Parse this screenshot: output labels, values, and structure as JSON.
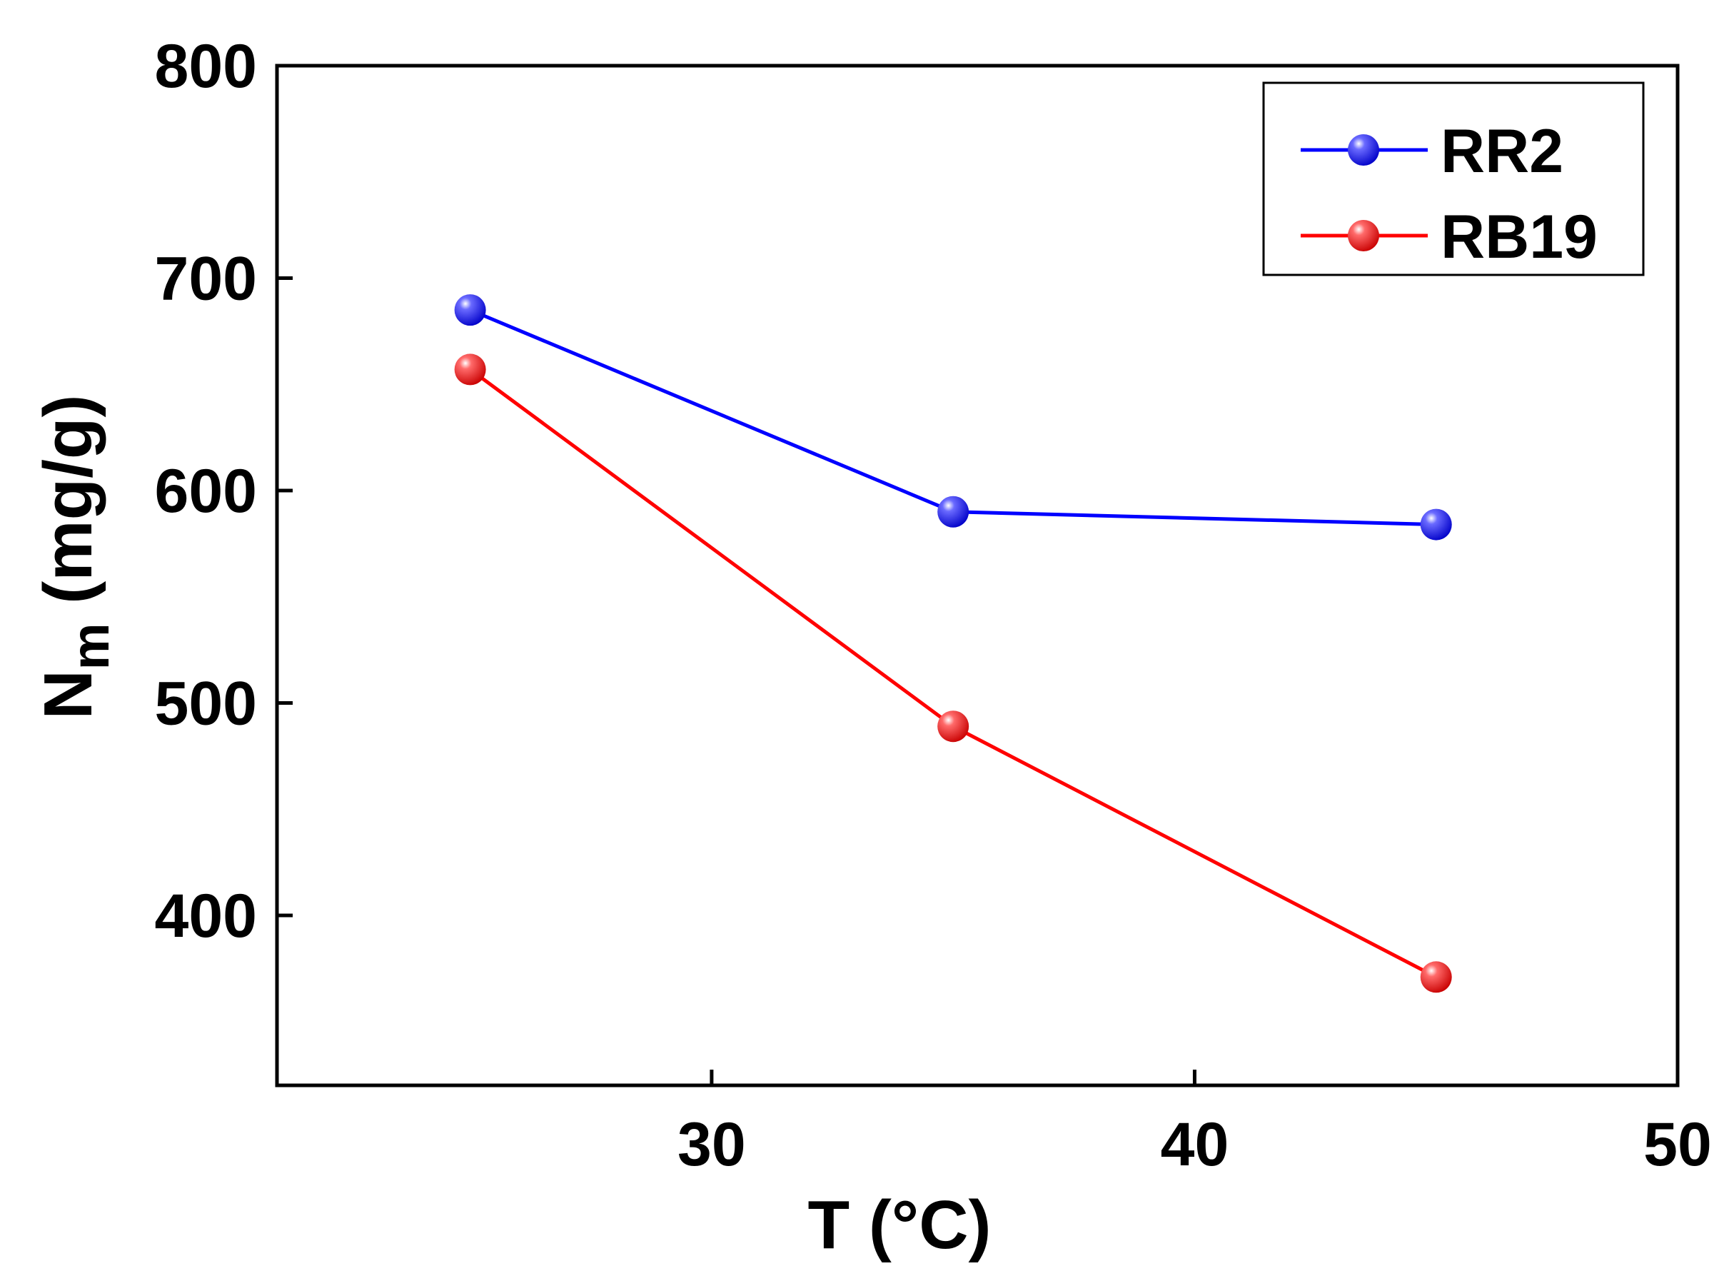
{
  "chart_data": {
    "type": "line",
    "title": "",
    "xlabel": "T (°C)",
    "ylabel": {
      "main": "N",
      "subscript": "m",
      "unit": " (mg/g)"
    },
    "xlim": [
      21,
      50
    ],
    "ylim": [
      320,
      800
    ],
    "x_ticks": [
      30,
      40,
      50
    ],
    "y_ticks": [
      400,
      500,
      600,
      700,
      800
    ],
    "x_tick_labels": [
      "30",
      "40",
      "50"
    ],
    "y_tick_labels": [
      "400",
      "500",
      "600",
      "700",
      "800"
    ],
    "grid": false,
    "legend_position": "top-right",
    "x": [
      25,
      35,
      45
    ],
    "series": [
      {
        "name": "RR2",
        "color": "#0000ff",
        "values": [
          685,
          590,
          584
        ]
      },
      {
        "name": "RB19",
        "color": "#ff0000",
        "values": [
          657,
          489,
          371
        ]
      }
    ]
  }
}
